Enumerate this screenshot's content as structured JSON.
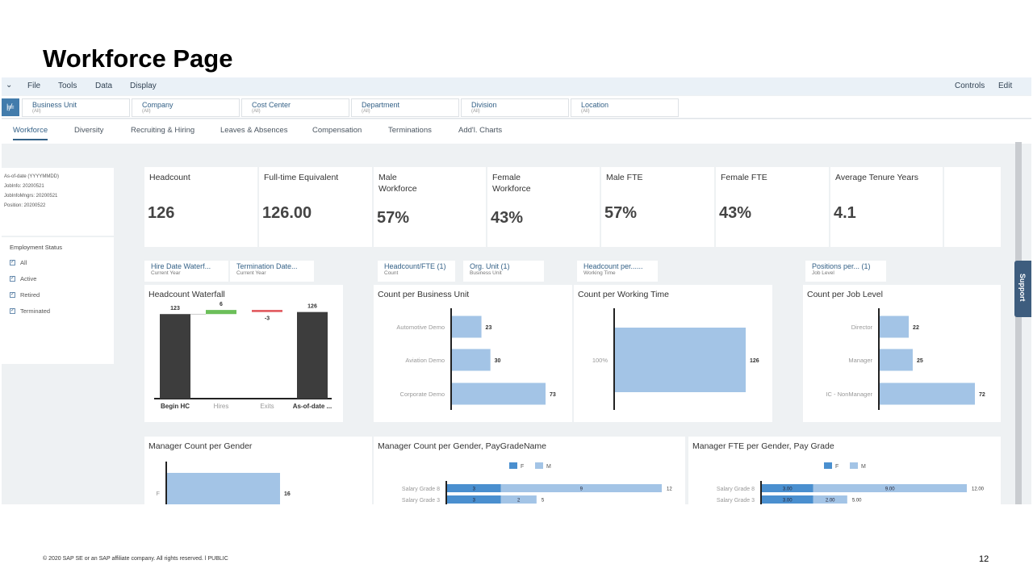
{
  "slide": {
    "title": "Workforce Page",
    "footer": "© 2020 SAP SE or an SAP affiliate company. All rights reserved.  ǀ  PUBLIC",
    "page_number": "12"
  },
  "menu": {
    "items": [
      "File",
      "Tools",
      "Data",
      "Display"
    ],
    "right": [
      "Controls",
      "Edit"
    ]
  },
  "filters": [
    {
      "label": "Business Unit",
      "value": "(All)"
    },
    {
      "label": "Company",
      "value": "(All)"
    },
    {
      "label": "Cost Center",
      "value": "(All)"
    },
    {
      "label": "Department",
      "value": "(All)"
    },
    {
      "label": "Division",
      "value": "(All)"
    },
    {
      "label": "Location",
      "value": "(All)"
    }
  ],
  "tabs": [
    "Workforce",
    "Diversity",
    "Recruiting & Hiring",
    "Leaves & Absences",
    "Compensation",
    "Terminations",
    "Add'l. Charts"
  ],
  "asof": [
    "As-of-date (YYYYMMDD)",
    "JobInfo: 20200521",
    "JobInfoMngrs: 20200521",
    "Position: 20200522"
  ],
  "employment_status": {
    "title": "Employment Status",
    "options": [
      "All",
      "Active",
      "Retired",
      "Terminated"
    ]
  },
  "kpis": [
    {
      "title": "Headcount",
      "value": "126"
    },
    {
      "title": "Full-time Equivalent",
      "value": "126.00"
    },
    {
      "title": "Male\nWorkforce",
      "value": "57%"
    },
    {
      "title": "Female\nWorkforce",
      "value": "43%"
    },
    {
      "title": "Male FTE",
      "value": "57%"
    },
    {
      "title": "Female FTE",
      "value": "43%"
    },
    {
      "title": "Average Tenure Years",
      "value": "4.1"
    }
  ],
  "pills": [
    {
      "label": "Hire Date Waterf...",
      "sub": "Current Year"
    },
    {
      "label": "Termination Date...",
      "sub": "Current Year"
    },
    {
      "label": "Headcount/FTE (1)",
      "sub": "Count"
    },
    {
      "label": "Org. Unit (1)",
      "sub": "Business Unit"
    },
    {
      "label": "Headcount per......",
      "sub": "Working Time"
    },
    {
      "label": "Positions per... (1)",
      "sub": "Job Level"
    }
  ],
  "support": "Support",
  "cards": {
    "waterfall": "Headcount Waterfall",
    "business_unit": "Count per Business Unit",
    "working_time": "Count per Working Time",
    "job_level": "Count per Job Level",
    "mgr_gender": "Manager Count per Gender",
    "mgr_gender_pay": "Manager Count per Gender, PayGradeName",
    "mgr_fte_pay": "Manager FTE per Gender, Pay Grade"
  },
  "colors": {
    "bar": "#a3c4e6",
    "dark": "#3d3d3d",
    "green": "#6cbf5a",
    "red": "#e0555a",
    "f": "#4a8fcf",
    "m": "#a3c4e6"
  },
  "chart_data": [
    {
      "type": "bar",
      "title": "Headcount Waterfall",
      "categories": [
        "Begin HC",
        "Hires",
        "Exits",
        "As-of-date ..."
      ],
      "values": [
        123,
        6,
        -3,
        126
      ]
    },
    {
      "type": "bar",
      "title": "Count per Business Unit",
      "categories": [
        "Automotive Demo",
        "Aviation Demo",
        "Corporate Demo"
      ],
      "values": [
        23,
        30,
        73
      ]
    },
    {
      "type": "bar",
      "title": "Count per Working Time",
      "categories": [
        "100%"
      ],
      "values": [
        126
      ]
    },
    {
      "type": "bar",
      "title": "Count per Job Level",
      "categories": [
        "Director",
        "Manager",
        "IC - NonManager"
      ],
      "values": [
        22,
        25,
        72
      ]
    },
    {
      "type": "bar",
      "title": "Manager Count per Gender",
      "categories": [
        "F"
      ],
      "values": [
        16
      ]
    },
    {
      "type": "bar",
      "title": "Manager Count per Gender, PayGradeName",
      "categories": [
        "Salary Grade 8",
        "Salary Grade 3"
      ],
      "legend": [
        "F",
        "M"
      ],
      "series": [
        {
          "name": "F",
          "values": [
            3,
            3
          ]
        },
        {
          "name": "M",
          "values": [
            9,
            2
          ]
        }
      ],
      "totals": [
        12,
        5
      ]
    },
    {
      "type": "bar",
      "title": "Manager FTE per Gender, Pay Grade",
      "categories": [
        "Salary Grade 8",
        "Salary Grade 3"
      ],
      "legend": [
        "F",
        "M"
      ],
      "series": [
        {
          "name": "F",
          "values": [
            "3.00",
            "3.00"
          ]
        },
        {
          "name": "M",
          "values": [
            "9.00",
            "2.00"
          ]
        }
      ],
      "totals": [
        "12.00",
        "5.00"
      ]
    }
  ]
}
